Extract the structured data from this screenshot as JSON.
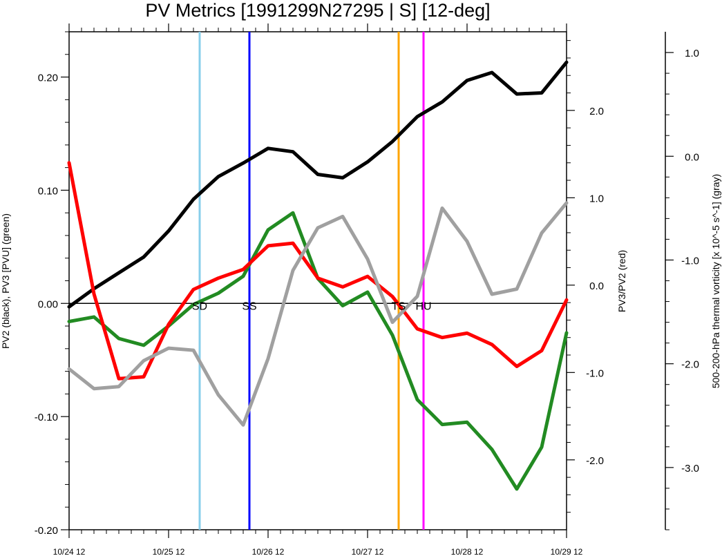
{
  "chart_data": {
    "type": "line",
    "title": "PV Metrics [1991299N27295 | S] [12-deg]",
    "x_tick_labels": [
      "10/24 12",
      "10/25 12",
      "10/26 12",
      "10/27 12",
      "10/28 12",
      "10/29 12"
    ],
    "x_range": [
      0,
      20
    ],
    "left_axis": {
      "label": "PV2 (black), PV3 [PVU] (green)",
      "range": [
        -0.2,
        0.24
      ],
      "ticks": [
        -0.2,
        -0.1,
        0.0,
        0.1,
        0.2
      ],
      "tick_labels": [
        "-0.20",
        "-0.10",
        "0.00",
        "0.10",
        "0.20"
      ]
    },
    "right_axis": {
      "label": "PV3/PV2 (red)",
      "range": [
        -2.8,
        2.9
      ],
      "ticks": [
        -2.0,
        -1.0,
        0.0,
        1.0,
        2.0
      ],
      "tick_labels": [
        "-2.0",
        "-1.0",
        "0.0",
        "1.0",
        "2.0"
      ]
    },
    "far_right_axis": {
      "label": "500-200-hPa thermal vorticity [x 10^-5 s^-1] (gray)",
      "range": [
        -3.6,
        1.2
      ],
      "ticks": [
        -3.0,
        -2.0,
        -1.0,
        0.0,
        1.0
      ],
      "tick_labels": [
        "-3.0",
        "-2.0",
        "-1.0",
        "0.0",
        "1.0"
      ]
    },
    "series": [
      {
        "color": "#000000",
        "axis": "left",
        "values": [
          -0.003,
          0.013,
          0.027,
          0.041,
          0.064,
          0.092,
          0.112,
          0.124,
          0.137,
          0.134,
          0.114,
          0.111,
          0.125,
          0.143,
          0.165,
          0.178,
          0.197,
          0.204,
          0.185,
          0.186,
          0.213
        ]
      },
      {
        "color": "#228b22",
        "axis": "left",
        "values": [
          -0.016,
          -0.012,
          -0.031,
          -0.037,
          -0.02,
          -0.001,
          0.009,
          0.024,
          0.065,
          0.08,
          0.022,
          -0.002,
          0.01,
          -0.028,
          -0.085,
          -0.107,
          -0.105,
          -0.129,
          -0.164,
          -0.127,
          -0.026
        ]
      },
      {
        "color": "#ff0000",
        "axis": "right",
        "values": [
          1.4,
          -0.1,
          -1.07,
          -1.05,
          -0.45,
          -0.05,
          0.08,
          0.18,
          0.45,
          0.48,
          0.08,
          -0.02,
          0.1,
          -0.13,
          -0.5,
          -0.6,
          -0.55,
          -0.68,
          -0.93,
          -0.75,
          -0.17
        ]
      },
      {
        "color": "#a0a0a0",
        "axis": "far_right",
        "values": [
          -2.05,
          -2.24,
          -2.22,
          -1.97,
          -1.85,
          -1.87,
          -2.3,
          -2.59,
          -1.95,
          -1.1,
          -0.69,
          -0.58,
          -0.99,
          -1.6,
          -1.35,
          -0.5,
          -0.82,
          -1.33,
          -1.28,
          -0.74,
          -0.45
        ]
      }
    ],
    "markers": [
      {
        "label": "SD",
        "x": 5.25,
        "color": "#87ceeb"
      },
      {
        "label": "SS",
        "x": 7.25,
        "color": "#0000ff"
      },
      {
        "label": "TS",
        "x": 13.25,
        "color": "#ffa500"
      },
      {
        "label": "HU",
        "x": 14.25,
        "color": "#ff00ff"
      }
    ],
    "zero_line": true,
    "grid": false
  }
}
